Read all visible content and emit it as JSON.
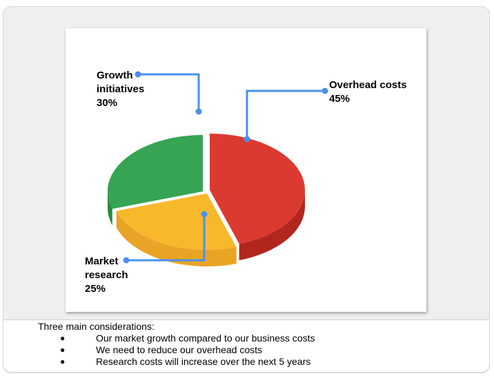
{
  "chart_data": {
    "type": "pie",
    "style": "3d",
    "slices": [
      {
        "label": "Overhead costs",
        "value": 45,
        "value_label": "45%",
        "color": "#db3a31",
        "side_color": "#b3261f"
      },
      {
        "label": "Market research",
        "value": 25,
        "value_label": "25%",
        "color": "#f8b82c",
        "side_color": "#e9a425"
      },
      {
        "label": "Growth initiatives",
        "value": 30,
        "value_label": "30%",
        "color": "#36a452",
        "side_color": "#2a8a40"
      }
    ],
    "label_lines": {
      "growth": [
        "Growth",
        "initiatives",
        "30%"
      ],
      "overhead": [
        "Overhead costs",
        "45%"
      ],
      "market": [
        "Market",
        "research",
        "25%"
      ]
    },
    "callout_color": "#4a8ff0"
  },
  "notes": {
    "heading": "Three main considerations:",
    "items": [
      "Our market growth compared to our business costs",
      "We need to reduce our overhead costs",
      "Research costs will increase over the next 5 years"
    ],
    "bullet": "●"
  }
}
